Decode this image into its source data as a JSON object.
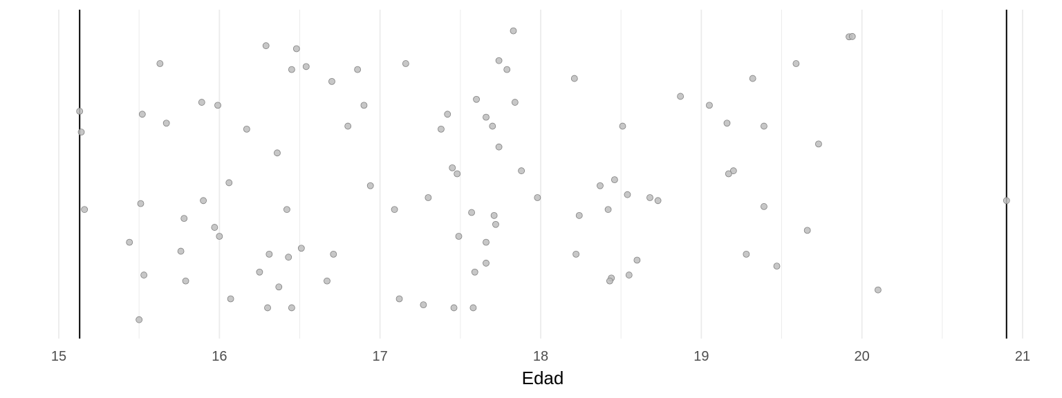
{
  "chart_data": {
    "type": "scatter",
    "title": "",
    "xlabel": "Edad",
    "ylabel": "",
    "xlim": [
      15,
      21
    ],
    "xticks": [
      15,
      16,
      17,
      18,
      19,
      20,
      21
    ],
    "xtick_labels": [
      "15",
      "16",
      "17",
      "18",
      "19",
      "20",
      "21"
    ],
    "minor_gridlines": [
      15.5,
      16.5,
      17.5,
      18.5,
      19.5,
      20.5
    ],
    "grid": true,
    "legend": "none",
    "reference_lines": [
      15.13,
      20.9
    ],
    "point_color": "#bdbdbd",
    "point_stroke": "#7f7f7f",
    "line_color": "#000000",
    "grid_color": "#ebebeb",
    "x": [
      17.83,
      19.92,
      19.94,
      16.29,
      16.48,
      17.74,
      17.16,
      15.63,
      19.59,
      16.54,
      16.45,
      16.86,
      17.79,
      16.7,
      18.21,
      19.32,
      18.87,
      17.6,
      17.84,
      15.89,
      15.99,
      16.9,
      19.05,
      15.13,
      15.52,
      17.42,
      17.66,
      15.67,
      19.16,
      18.51,
      19.39,
      16.17,
      16.8,
      17.38,
      17.7,
      15.14,
      19.73,
      17.74,
      16.36,
      17.45,
      17.88,
      19.2,
      19.17,
      17.48,
      18.46,
      16.06,
      16.94,
      18.37,
      18.54,
      17.3,
      17.98,
      18.68,
      18.73,
      20.9,
      15.51,
      15.9,
      15.16,
      16.42,
      17.09,
      18.42,
      19.39,
      17.57,
      17.71,
      18.24,
      15.78,
      17.72,
      15.97,
      19.66,
      16.0,
      17.49,
      15.44,
      17.66,
      16.51,
      15.76,
      16.31,
      16.71,
      18.22,
      16.43,
      19.28,
      18.6,
      17.66,
      19.47,
      16.25,
      17.59,
      15.53,
      18.55,
      18.44,
      15.79,
      16.67,
      18.43,
      16.37,
      20.1,
      16.07,
      17.12,
      17.27,
      16.3,
      16.45,
      17.46,
      17.58,
      15.5
    ],
    "jitter": [
      0.98,
      0.96,
      0.961,
      0.93,
      0.92,
      0.88,
      0.87,
      0.87,
      0.87,
      0.86,
      0.85,
      0.85,
      0.85,
      0.81,
      0.82,
      0.82,
      0.76,
      0.75,
      0.74,
      0.74,
      0.73,
      0.73,
      0.73,
      0.71,
      0.7,
      0.7,
      0.69,
      0.67,
      0.67,
      0.66,
      0.66,
      0.65,
      0.66,
      0.65,
      0.66,
      0.64,
      0.6,
      0.59,
      0.57,
      0.52,
      0.51,
      0.51,
      0.5,
      0.5,
      0.48,
      0.47,
      0.46,
      0.46,
      0.43,
      0.42,
      0.42,
      0.42,
      0.41,
      0.41,
      0.4,
      0.41,
      0.38,
      0.38,
      0.38,
      0.38,
      0.39,
      0.37,
      0.36,
      0.36,
      0.35,
      0.33,
      0.32,
      0.31,
      0.29,
      0.29,
      0.27,
      0.27,
      0.25,
      0.24,
      0.23,
      0.23,
      0.23,
      0.22,
      0.23,
      0.21,
      0.2,
      0.19,
      0.17,
      0.17,
      0.16,
      0.16,
      0.15,
      0.14,
      0.14,
      0.14,
      0.12,
      0.11,
      0.08,
      0.08,
      0.06,
      0.05,
      0.05,
      0.05,
      0.05,
      0.01
    ]
  }
}
